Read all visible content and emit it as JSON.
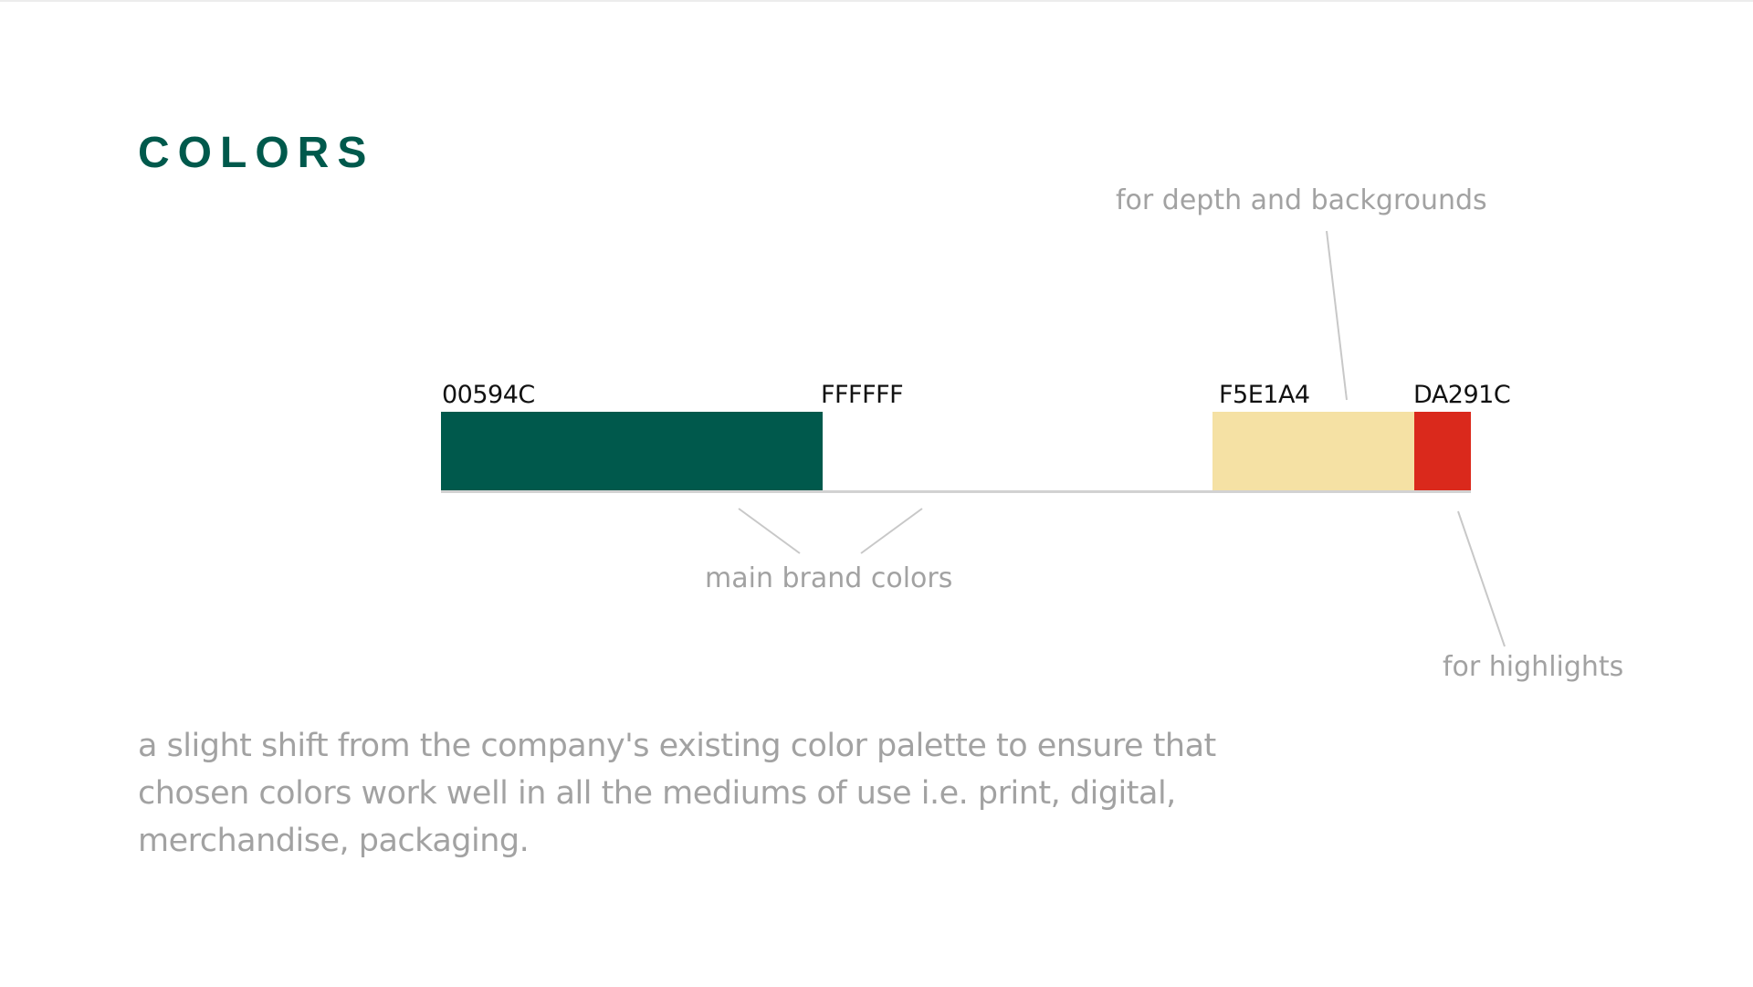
{
  "title": "COLORS",
  "colors": {
    "title": "#00594c",
    "note_text": "#a2a2a2",
    "leader_line": "#c8c8c8"
  },
  "swatches": [
    {
      "hex_label": "00594C",
      "color": "#00594C"
    },
    {
      "hex_label": "FFFFFF",
      "color": "#FFFFFF"
    },
    {
      "hex_label": "F5E1A4",
      "color": "#F5E1A4"
    },
    {
      "hex_label": "DA291C",
      "color": "#DA291C"
    }
  ],
  "annotations": {
    "main_brand": "main brand colors",
    "depth_backgrounds": "for depth and backgrounds",
    "highlights": "for highlights"
  },
  "description": "a slight shift from the company's existing color palette to ensure that chosen colors work well in all the mediums of use i.e. print, digital, merchandise, packaging."
}
